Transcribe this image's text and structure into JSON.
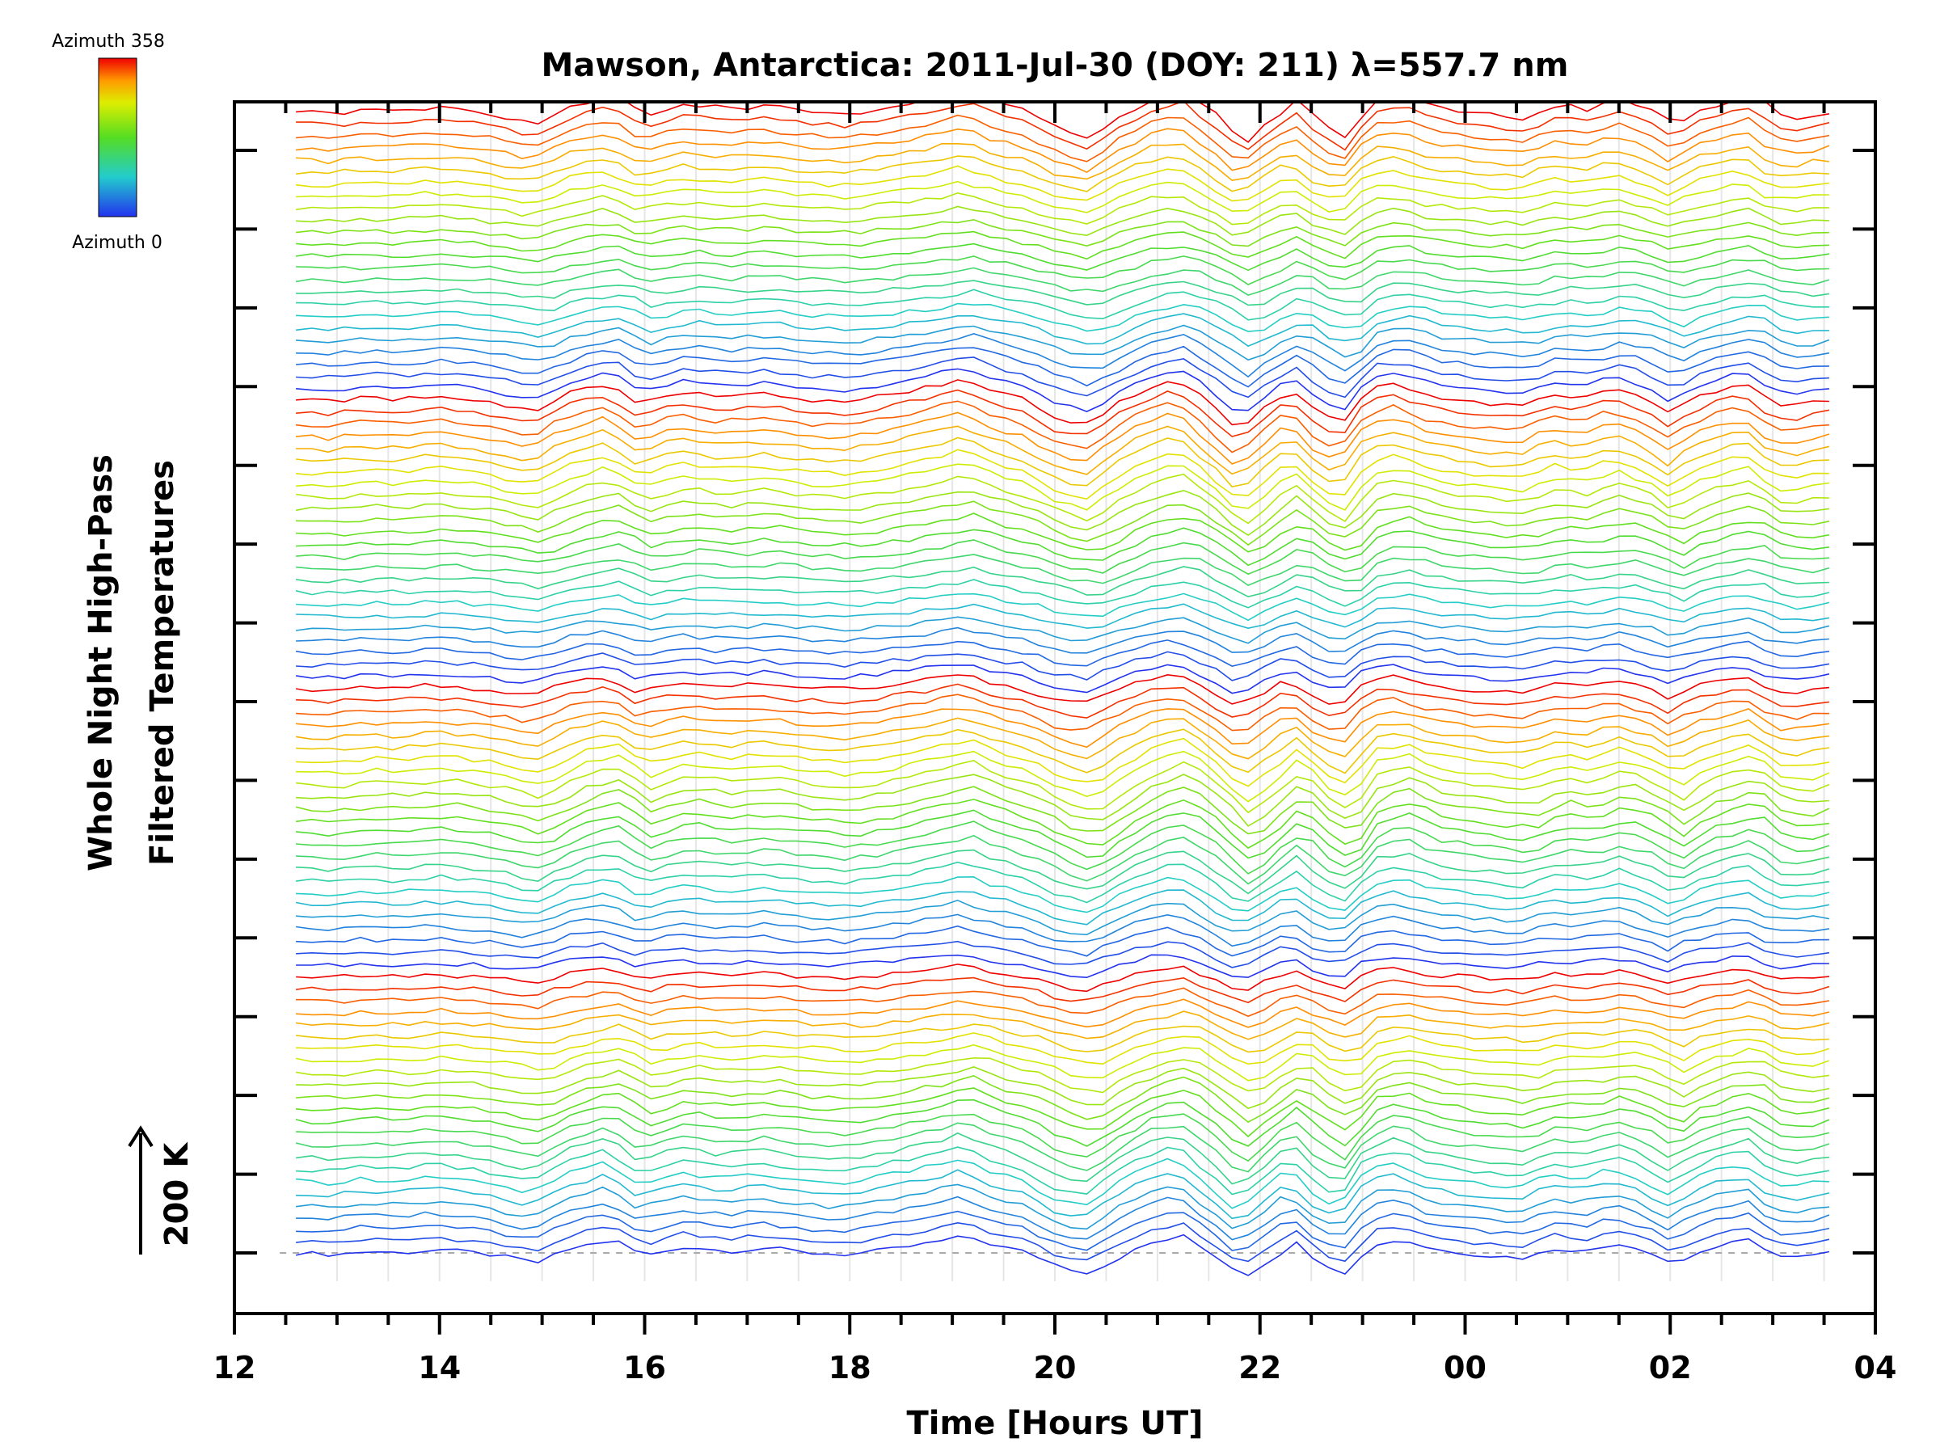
{
  "chart_data": {
    "type": "line",
    "title": "Mawson, Antarctica: 2011-Jul-30 (DOY: 211) λ=557.7 nm",
    "xlabel": "Time [Hours UT]",
    "ylabel_line1": "Whole Night High-Pass",
    "ylabel_line2": "Filtered Temperatures",
    "scale_label": "200 K",
    "scale_kelvin": 200,
    "xlim_hours": [
      12,
      28
    ],
    "x_tick_labels": [
      "12",
      "14",
      "16",
      "18",
      "20",
      "22",
      "00",
      "02",
      "04"
    ],
    "x_tick_hours": [
      12,
      14,
      16,
      18,
      20,
      22,
      24,
      26,
      28
    ],
    "minor_tick_interval_hours": 0.5,
    "y_major_tick_count": 15,
    "data_start_hour": 12.6,
    "data_end_hour": 27.55,
    "grid_vertical": true,
    "colorbar": {
      "top_label": "Azimuth 358",
      "bottom_label": "Azimuth 0",
      "min_azimuth": 0,
      "max_azimuth": 358,
      "colormap": "rainbow: blue-cyan-green-yellow-orange-red"
    },
    "series_structure": {
      "rings": 4,
      "traces_per_ring": 24,
      "trace_order": "bottom to top, azimuth 0 to 358 repeated per ring",
      "baseline_dashed": true
    },
    "disturbance_profile": {
      "x_hours": [
        12.6,
        13.0,
        13.3,
        13.6,
        14.0,
        14.5,
        14.95,
        15.3,
        15.7,
        16.0,
        16.4,
        16.8,
        17.2,
        17.6,
        18.0,
        18.4,
        18.8,
        19.15,
        19.45,
        19.75,
        20.05,
        20.35,
        20.65,
        20.95,
        21.25,
        21.55,
        21.85,
        22.1,
        22.35,
        22.6,
        22.85,
        23.1,
        23.4,
        23.7,
        24.0,
        24.3,
        24.6,
        24.9,
        25.2,
        25.5,
        25.8,
        26.05,
        26.3,
        26.55,
        26.8,
        27.05,
        27.3,
        27.55
      ],
      "offset_kelvin": [
        0,
        -5,
        5,
        0,
        10,
        -5,
        -30,
        15,
        40,
        -10,
        20,
        5,
        15,
        0,
        -5,
        10,
        30,
        50,
        20,
        0,
        -40,
        -60,
        -10,
        30,
        50,
        -5,
        -70,
        -20,
        30,
        -30,
        -60,
        25,
        40,
        10,
        0,
        -10,
        -15,
        15,
        5,
        30,
        5,
        -35,
        5,
        25,
        40,
        -10,
        -15,
        0
      ]
    }
  }
}
